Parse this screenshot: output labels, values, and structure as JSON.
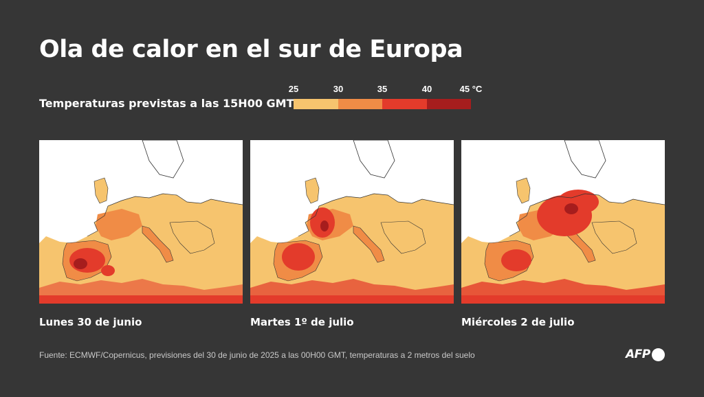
{
  "title": "Ola de calor en el sur de Europa",
  "subtitle": "Temperaturas previstas a las 15H00 GMT",
  "legend": {
    "ticks": [
      "25",
      "30",
      "35",
      "40",
      "45 °C"
    ],
    "colors": [
      "#f6c46e",
      "#f08c46",
      "#e33b2b",
      "#a61d1d"
    ]
  },
  "maps": [
    {
      "caption": "Lunes 30 de junio",
      "day": 0
    },
    {
      "caption": "Martes 1º de julio",
      "day": 1
    },
    {
      "caption": "Miércoles 2 de julio",
      "day": 2
    }
  ],
  "palette": {
    "land_outline": "#333333",
    "sea_bg": "#ffffff",
    "t25": "#f6c46e",
    "t30": "#f08c46",
    "t35": "#e33b2b",
    "t40": "#a61d1d"
  },
  "source": "Fuente: ECMWF/Copernicus, previsiones del 30 de junio de 2025 a las 00H00 GMT, temperaturas a 2 metros del suelo",
  "logo": {
    "text": "AFP",
    "icon": "afp-dot-icon"
  }
}
